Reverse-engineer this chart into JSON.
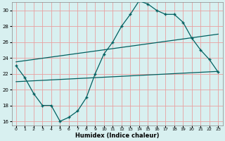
{
  "xlabel": "Humidex (Indice chaleur)",
  "ylabel": "",
  "plot_bg": "#d8f0f0",
  "fig_bg": "#d8f0f0",
  "grid_color": "#e8a0a0",
  "line_color": "#006060",
  "xlim": [
    -0.5,
    23.5
  ],
  "ylim": [
    15.5,
    31.0
  ],
  "yticks": [
    16,
    18,
    20,
    22,
    24,
    26,
    28,
    30
  ],
  "xticks": [
    0,
    1,
    2,
    3,
    4,
    5,
    6,
    7,
    8,
    9,
    10,
    11,
    12,
    13,
    14,
    15,
    16,
    17,
    18,
    19,
    20,
    21,
    22,
    23
  ],
  "line1_x": [
    0,
    1,
    2,
    3,
    4,
    5,
    6,
    7,
    8,
    9,
    10,
    11,
    12,
    13,
    14,
    15,
    16,
    17,
    18,
    19,
    20,
    21,
    22,
    23
  ],
  "line1_y": [
    23.0,
    21.5,
    19.5,
    18.0,
    18.0,
    16.0,
    16.5,
    17.3,
    19.0,
    22.0,
    24.5,
    26.0,
    28.0,
    29.5,
    31.2,
    30.8,
    30.0,
    29.5,
    29.5,
    28.5,
    26.5,
    25.0,
    23.8,
    22.2
  ],
  "line2_x": [
    0,
    23
  ],
  "line2_y": [
    23.5,
    27.0
  ],
  "line3_x": [
    0,
    23
  ],
  "line3_y": [
    21.0,
    22.3
  ]
}
